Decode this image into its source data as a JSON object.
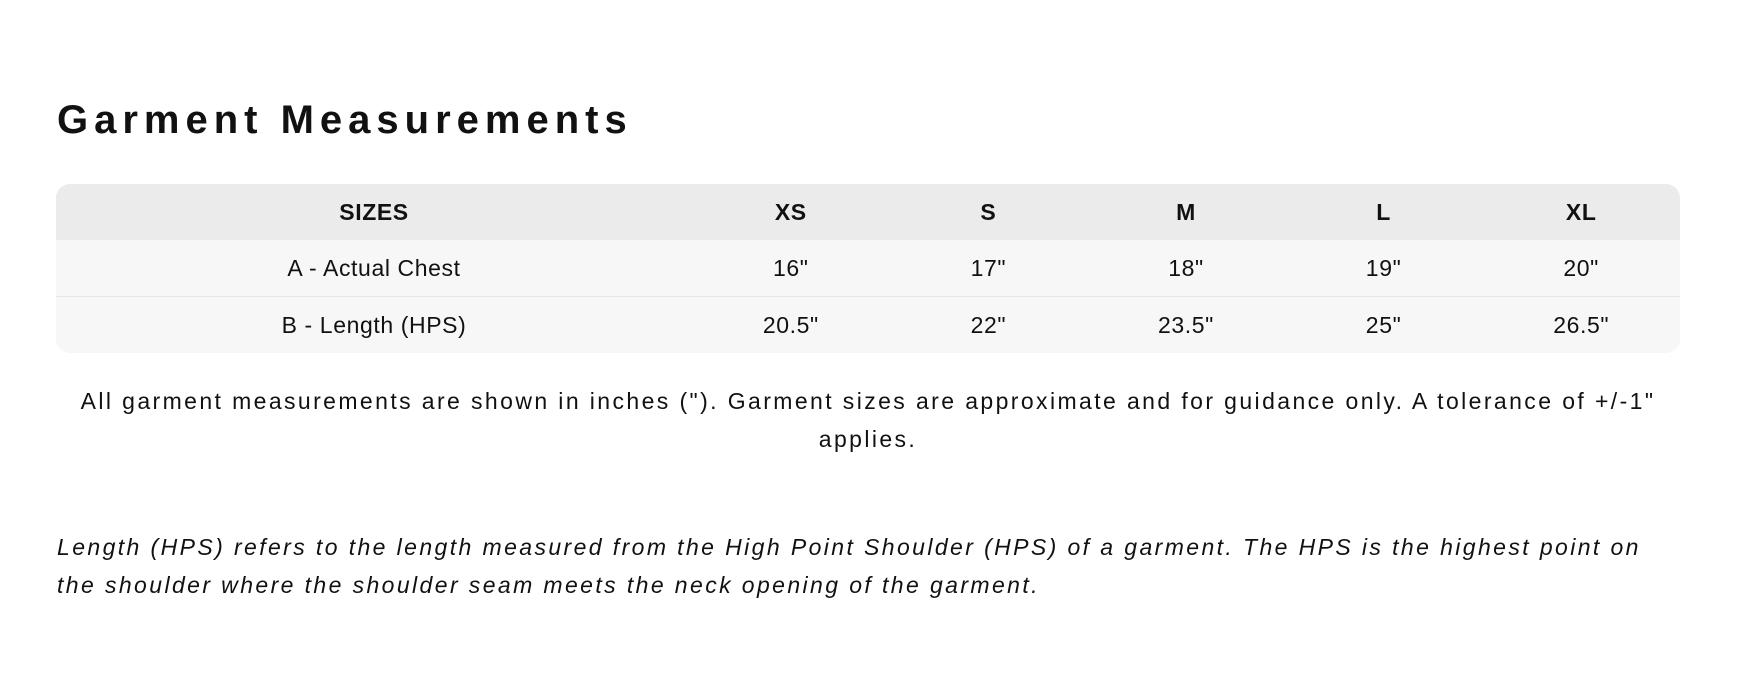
{
  "title": "Garment Measurements",
  "table": {
    "headers": [
      "SIZES",
      "XS",
      "S",
      "M",
      "L",
      "XL"
    ],
    "rows": [
      [
        "A - Actual Chest",
        "16\"",
        "17\"",
        "18\"",
        "19\"",
        "20\""
      ],
      [
        "B - Length (HPS)",
        "20.5\"",
        "22\"",
        "23.5\"",
        "25\"",
        "26.5\""
      ]
    ]
  },
  "note": "All garment measurements are shown in inches (\"). Garment sizes are approximate and for guidance only. A tolerance of +/-1\" applies.",
  "hps_note": "Length (HPS) refers to the length measured from the High Point Shoulder (HPS) of a garment. The HPS is the highest point on the shoulder where the shoulder seam meets the neck opening of the garment.",
  "colors": {
    "header_bg": "#ebebeb",
    "row_bg": "#f7f7f7",
    "text": "#111111"
  }
}
